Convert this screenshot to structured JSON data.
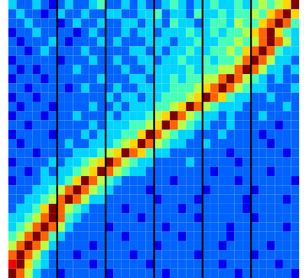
{
  "chart_data": {
    "type": "heatmap",
    "color": "jet",
    "tick_labels": false,
    "xlim": [
      0,
      36
    ],
    "ylim": [
      0,
      30
    ],
    "color_range": [
      0,
      9
    ],
    "dividers": [
      6,
      12,
      18,
      24,
      30
    ],
    "cells": [
      [
        3,
        2,
        2,
        3,
        2,
        1,
        2,
        3,
        2,
        2,
        3,
        4,
        2,
        2,
        3,
        2,
        3,
        2,
        2,
        3,
        4,
        3,
        2,
        3,
        3,
        4,
        3,
        3,
        4,
        3,
        4,
        5,
        4,
        5,
        6,
        9
      ],
      [
        2,
        3,
        2,
        2,
        1,
        2,
        3,
        2,
        2,
        3,
        2,
        2,
        3,
        3,
        2,
        2,
        3,
        3,
        4,
        2,
        3,
        3,
        2,
        4,
        3,
        3,
        4,
        3,
        4,
        4,
        5,
        4,
        6,
        7,
        9,
        6
      ],
      [
        2,
        2,
        3,
        2,
        2,
        2,
        1,
        2,
        3,
        2,
        2,
        3,
        2,
        2,
        3,
        3,
        2,
        3,
        3,
        2,
        4,
        3,
        3,
        2,
        3,
        4,
        4,
        3,
        5,
        4,
        4,
        6,
        7,
        9,
        7,
        4
      ],
      [
        1,
        2,
        2,
        3,
        2,
        2,
        2,
        2,
        1,
        2,
        3,
        2,
        2,
        2,
        3,
        2,
        3,
        3,
        2,
        3,
        3,
        3,
        4,
        3,
        3,
        4,
        3,
        4,
        4,
        5,
        6,
        7,
        9,
        6,
        4,
        3
      ],
      [
        2,
        1,
        2,
        2,
        2,
        3,
        2,
        1,
        2,
        2,
        2,
        3,
        2,
        3,
        2,
        2,
        2,
        3,
        3,
        3,
        2,
        3,
        3,
        4,
        3,
        3,
        4,
        4,
        5,
        4,
        5,
        7,
        9,
        7,
        5,
        3
      ],
      [
        2,
        2,
        1,
        2,
        3,
        2,
        2,
        2,
        2,
        3,
        2,
        2,
        2,
        2,
        2,
        3,
        3,
        2,
        3,
        2,
        3,
        3,
        4,
        3,
        3,
        4,
        4,
        5,
        4,
        6,
        7,
        9,
        7,
        4,
        3,
        3
      ],
      [
        1,
        2,
        2,
        2,
        2,
        2,
        1,
        2,
        2,
        2,
        3,
        2,
        2,
        3,
        2,
        2,
        3,
        3,
        2,
        3,
        3,
        4,
        3,
        3,
        4,
        3,
        4,
        4,
        5,
        7,
        9,
        7,
        5,
        3,
        3,
        2
      ],
      [
        2,
        1,
        2,
        1,
        2,
        2,
        2,
        2,
        3,
        2,
        2,
        2,
        2,
        2,
        3,
        2,
        2,
        3,
        3,
        3,
        3,
        3,
        4,
        3,
        4,
        4,
        5,
        5,
        7,
        9,
        7,
        5,
        3,
        3,
        2,
        3
      ],
      [
        1,
        2,
        2,
        2,
        1,
        2,
        2,
        2,
        2,
        2,
        2,
        3,
        2,
        2,
        2,
        3,
        3,
        2,
        3,
        3,
        4,
        3,
        4,
        4,
        5,
        5,
        7,
        9,
        7,
        5,
        4,
        3,
        2,
        3,
        2,
        2
      ],
      [
        2,
        2,
        1,
        2,
        2,
        2,
        2,
        1,
        2,
        3,
        2,
        2,
        2,
        3,
        2,
        2,
        3,
        3,
        3,
        3,
        4,
        4,
        4,
        5,
        6,
        7,
        9,
        7,
        5,
        4,
        3,
        3,
        2,
        2,
        2,
        3
      ],
      [
        1,
        2,
        2,
        1,
        2,
        2,
        2,
        2,
        2,
        2,
        2,
        2,
        3,
        2,
        3,
        3,
        2,
        3,
        3,
        4,
        4,
        4,
        5,
        6,
        9,
        7,
        6,
        4,
        3,
        3,
        2,
        2,
        3,
        2,
        2,
        2
      ],
      [
        2,
        1,
        2,
        2,
        2,
        1,
        2,
        2,
        2,
        2,
        3,
        2,
        2,
        3,
        2,
        3,
        3,
        3,
        4,
        4,
        5,
        6,
        9,
        7,
        5,
        4,
        3,
        3,
        3,
        2,
        2,
        2,
        2,
        2,
        3,
        2
      ],
      [
        1,
        2,
        2,
        2,
        1,
        2,
        2,
        2,
        3,
        2,
        2,
        2,
        3,
        2,
        3,
        3,
        3,
        4,
        5,
        6,
        9,
        7,
        5,
        4,
        3,
        3,
        2,
        3,
        2,
        2,
        2,
        3,
        2,
        2,
        2,
        2
      ],
      [
        2,
        2,
        1,
        2,
        2,
        2,
        2,
        2,
        2,
        2,
        3,
        2,
        3,
        3,
        3,
        4,
        4,
        5,
        6,
        9,
        7,
        5,
        4,
        3,
        3,
        2,
        2,
        3,
        2,
        2,
        2,
        2,
        2,
        1,
        2,
        2
      ],
      [
        1,
        2,
        2,
        2,
        2,
        1,
        2,
        2,
        2,
        3,
        2,
        3,
        3,
        3,
        4,
        4,
        6,
        9,
        7,
        5,
        4,
        3,
        3,
        2,
        2,
        2,
        3,
        2,
        2,
        2,
        2,
        1,
        2,
        2,
        2,
        2
      ],
      [
        2,
        1,
        2,
        2,
        2,
        2,
        2,
        3,
        2,
        2,
        3,
        3,
        3,
        4,
        5,
        6,
        9,
        7,
        5,
        4,
        3,
        3,
        2,
        2,
        3,
        2,
        2,
        2,
        2,
        2,
        2,
        2,
        1,
        2,
        2,
        2
      ],
      [
        2,
        2,
        2,
        1,
        2,
        2,
        2,
        2,
        3,
        3,
        3,
        4,
        5,
        6,
        9,
        7,
        6,
        4,
        3,
        3,
        2,
        2,
        2,
        2,
        2,
        2,
        2,
        1,
        2,
        2,
        2,
        2,
        2,
        2,
        1,
        2
      ],
      [
        1,
        2,
        2,
        2,
        2,
        3,
        2,
        3,
        3,
        4,
        5,
        6,
        9,
        7,
        5,
        4,
        3,
        3,
        2,
        2,
        2,
        2,
        3,
        2,
        2,
        2,
        2,
        2,
        1,
        2,
        2,
        2,
        2,
        2,
        2,
        2
      ],
      [
        2,
        2,
        1,
        2,
        3,
        2,
        3,
        3,
        4,
        5,
        6,
        9,
        7,
        5,
        4,
        3,
        3,
        2,
        2,
        2,
        2,
        2,
        2,
        2,
        2,
        1,
        2,
        2,
        2,
        2,
        2,
        2,
        1,
        2,
        2,
        2
      ],
      [
        1,
        2,
        2,
        2,
        3,
        3,
        3,
        4,
        6,
        9,
        7,
        5,
        4,
        3,
        2,
        2,
        2,
        2,
        2,
        2,
        1,
        2,
        2,
        2,
        2,
        2,
        2,
        2,
        1,
        2,
        2,
        2,
        2,
        2,
        2,
        1
      ],
      [
        2,
        2,
        2,
        3,
        3,
        4,
        5,
        7,
        9,
        7,
        5,
        4,
        3,
        2,
        2,
        2,
        2,
        1,
        2,
        2,
        2,
        2,
        2,
        2,
        1,
        2,
        2,
        2,
        2,
        2,
        1,
        2,
        2,
        2,
        2,
        2
      ],
      [
        2,
        2,
        3,
        3,
        4,
        5,
        7,
        9,
        7,
        5,
        3,
        3,
        2,
        2,
        2,
        2,
        2,
        2,
        1,
        2,
        2,
        2,
        2,
        1,
        2,
        2,
        2,
        2,
        2,
        1,
        2,
        2,
        2,
        2,
        1,
        2
      ],
      [
        2,
        3,
        3,
        4,
        6,
        9,
        7,
        5,
        4,
        3,
        2,
        2,
        2,
        2,
        1,
        2,
        2,
        2,
        2,
        2,
        2,
        1,
        2,
        2,
        2,
        2,
        2,
        2,
        2,
        1,
        2,
        2,
        2,
        2,
        2,
        2
      ],
      [
        3,
        3,
        4,
        5,
        7,
        9,
        7,
        4,
        3,
        2,
        2,
        2,
        2,
        2,
        2,
        2,
        1,
        2,
        2,
        2,
        2,
        2,
        2,
        1,
        2,
        2,
        2,
        2,
        2,
        2,
        1,
        2,
        2,
        2,
        2,
        2
      ],
      [
        3,
        4,
        5,
        7,
        9,
        7,
        5,
        3,
        2,
        2,
        2,
        2,
        1,
        2,
        2,
        2,
        2,
        2,
        2,
        1,
        2,
        2,
        2,
        2,
        2,
        2,
        2,
        1,
        2,
        2,
        2,
        2,
        2,
        2,
        1,
        2
      ],
      [
        4,
        5,
        7,
        9,
        7,
        4,
        3,
        2,
        2,
        2,
        2,
        2,
        2,
        2,
        1,
        2,
        2,
        2,
        2,
        2,
        2,
        1,
        2,
        2,
        2,
        2,
        2,
        1,
        2,
        2,
        2,
        2,
        2,
        2,
        2,
        2
      ],
      [
        5,
        7,
        9,
        7,
        5,
        3,
        2,
        2,
        2,
        2,
        1,
        2,
        2,
        2,
        2,
        2,
        2,
        2,
        1,
        2,
        2,
        2,
        2,
        2,
        2,
        2,
        1,
        2,
        2,
        2,
        2,
        2,
        1,
        2,
        2,
        2
      ],
      [
        7,
        9,
        7,
        5,
        3,
        2,
        2,
        2,
        1,
        2,
        2,
        2,
        2,
        2,
        2,
        1,
        2,
        2,
        2,
        2,
        2,
        2,
        2,
        1,
        2,
        2,
        2,
        2,
        2,
        2,
        1,
        2,
        2,
        2,
        2,
        2
      ],
      [
        8,
        9,
        6,
        4,
        3,
        2,
        2,
        2,
        2,
        2,
        1,
        2,
        2,
        2,
        2,
        2,
        2,
        1,
        2,
        2,
        2,
        2,
        2,
        2,
        2,
        2,
        1,
        2,
        2,
        2,
        2,
        2,
        2,
        1,
        2,
        2
      ],
      [
        9,
        7,
        5,
        3,
        2,
        2,
        1,
        2,
        2,
        2,
        2,
        2,
        1,
        2,
        2,
        2,
        2,
        2,
        2,
        1,
        2,
        2,
        2,
        2,
        2,
        2,
        2,
        2,
        1,
        2,
        2,
        2,
        2,
        2,
        2,
        1
      ]
    ]
  }
}
